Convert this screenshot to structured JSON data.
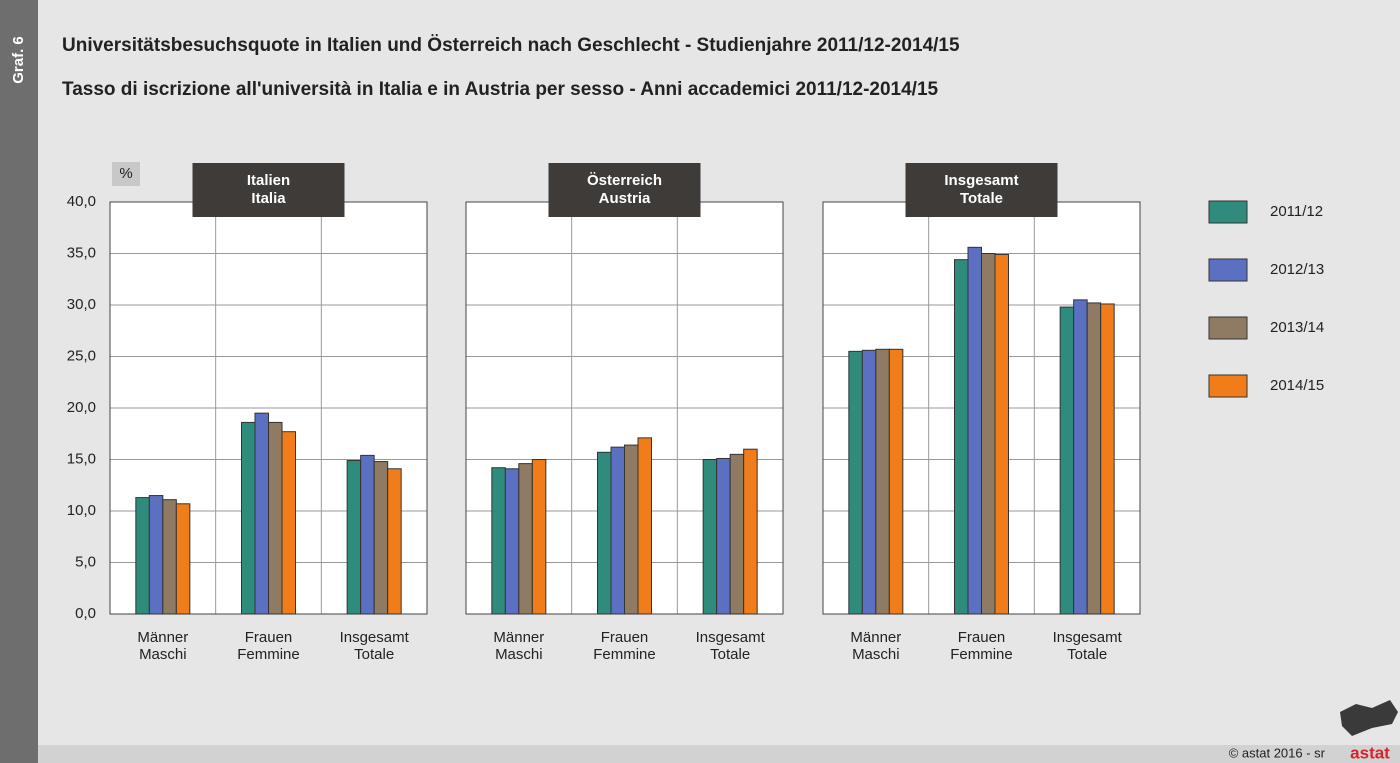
{
  "page": {
    "label": "Graf. 6",
    "footer": "© astat 2016 - sr",
    "logo": "astat"
  },
  "chart_data": {
    "type": "bar",
    "title": "Universitätsbesuchsquote in Italien und Österreich nach Geschlecht - Studienjahre 2011/12-2014/15",
    "subtitle": "Tasso di iscrizione all'università in Italia e in Austria per sesso - Anni accademici 2011/12-2014/15",
    "ylabel": "%",
    "ylim": [
      0,
      40
    ],
    "yticks": [
      {
        "value": 0,
        "label": "0,0"
      },
      {
        "value": 5,
        "label": "5,0"
      },
      {
        "value": 10,
        "label": "10,0"
      },
      {
        "value": 15,
        "label": "15,0"
      },
      {
        "value": 20,
        "label": "20,0"
      },
      {
        "value": 25,
        "label": "25,0"
      },
      {
        "value": 30,
        "label": "30,0"
      },
      {
        "value": 35,
        "label": "35,0"
      },
      {
        "value": 40,
        "label": "40,0"
      }
    ],
    "grid": true,
    "series": [
      {
        "name": "2011/12",
        "color": "#2f8c7c"
      },
      {
        "name": "2012/13",
        "color": "#5c70c2"
      },
      {
        "name": "2013/14",
        "color": "#8f7b63"
      },
      {
        "name": "2014/15",
        "color": "#f07d1a"
      }
    ],
    "panels": [
      {
        "title": [
          "Italien",
          "Italia"
        ],
        "categories": [
          [
            "Männer",
            "Maschi"
          ],
          [
            "Frauen",
            "Femmine"
          ],
          [
            "Insgesamt",
            "Totale"
          ]
        ],
        "values": [
          [
            11.3,
            18.6,
            14.9
          ],
          [
            11.5,
            19.5,
            15.4
          ],
          [
            11.1,
            18.6,
            14.8
          ],
          [
            10.7,
            17.7,
            14.1
          ]
        ]
      },
      {
        "title": [
          "Österreich",
          "Austria"
        ],
        "categories": [
          [
            "Männer",
            "Maschi"
          ],
          [
            "Frauen",
            "Femmine"
          ],
          [
            "Insgesamt",
            "Totale"
          ]
        ],
        "values": [
          [
            14.2,
            15.7,
            15.0
          ],
          [
            14.1,
            16.2,
            15.1
          ],
          [
            14.6,
            16.4,
            15.5
          ],
          [
            15.0,
            17.1,
            16.0
          ]
        ]
      },
      {
        "title": [
          "Insgesamt",
          "Totale"
        ],
        "categories": [
          [
            "Männer",
            "Maschi"
          ],
          [
            "Frauen",
            "Femmine"
          ],
          [
            "Insgesamt",
            "Totale"
          ]
        ],
        "values": [
          [
            25.5,
            34.4,
            29.8
          ],
          [
            25.6,
            35.6,
            30.5
          ],
          [
            25.7,
            35.0,
            30.2
          ],
          [
            25.7,
            34.9,
            30.1
          ]
        ]
      }
    ]
  }
}
